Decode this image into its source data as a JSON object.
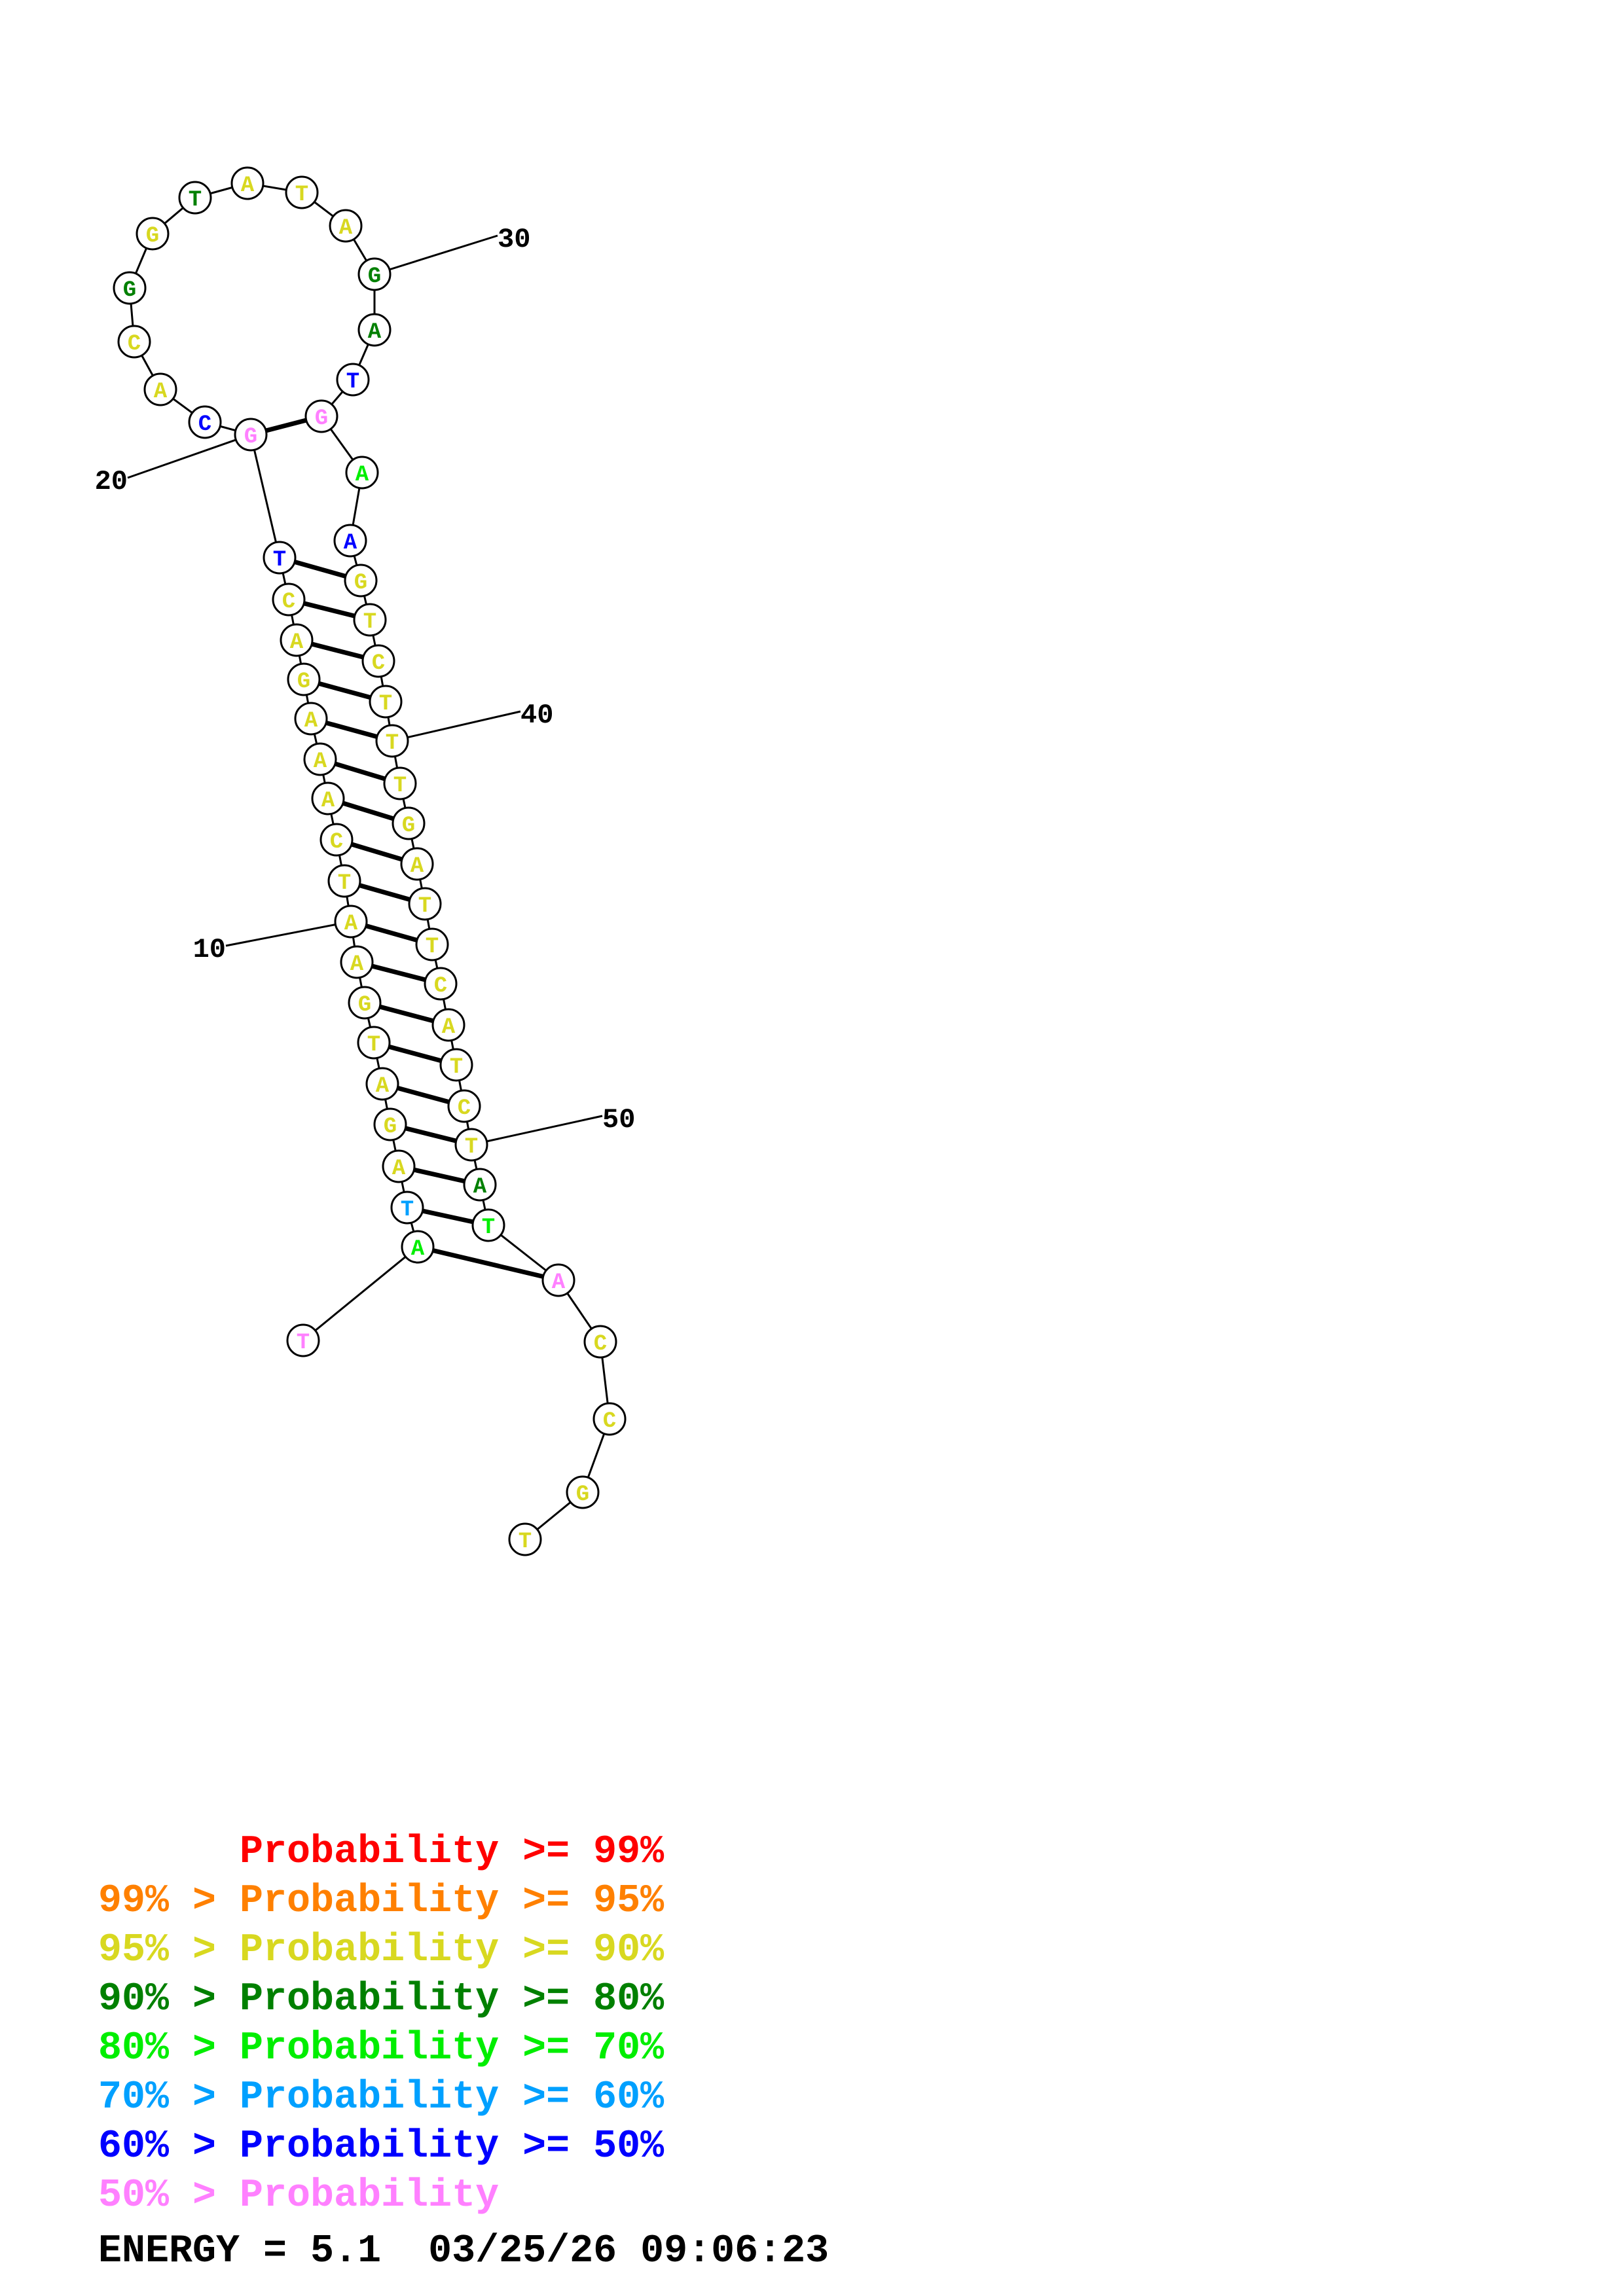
{
  "diagram": {
    "type": "rna_secondary_structure",
    "sequence": [
      "T",
      "A",
      "T",
      "A",
      "G",
      "A",
      "T",
      "G",
      "A",
      "A",
      "T",
      "C",
      "A",
      "A",
      "A",
      "G",
      "A",
      "C",
      "T",
      "G",
      "C",
      "A",
      "C",
      "G",
      "G",
      "T",
      "A",
      "T",
      "A",
      "G",
      "A",
      "T",
      "G",
      "A",
      "A",
      "G",
      "T",
      "C",
      "T",
      "T",
      "T",
      "G",
      "A",
      "T",
      "T",
      "C",
      "A",
      "T",
      "C",
      "T",
      "A",
      "T",
      "A",
      "C",
      "C",
      "G",
      "T"
    ],
    "position_labels": [
      {
        "label": "10",
        "index": 10
      },
      {
        "label": "20",
        "index": 20
      },
      {
        "label": "30",
        "index": 30
      },
      {
        "label": "40",
        "index": 40
      },
      {
        "label": "50",
        "index": 50
      }
    ],
    "pairs": [
      [
        2,
        53
      ],
      [
        3,
        52
      ],
      [
        4,
        51
      ],
      [
        5,
        50
      ],
      [
        6,
        49
      ],
      [
        7,
        48
      ],
      [
        8,
        47
      ],
      [
        9,
        46
      ],
      [
        10,
        45
      ],
      [
        11,
        44
      ],
      [
        12,
        43
      ],
      [
        13,
        42
      ],
      [
        14,
        41
      ],
      [
        15,
        40
      ],
      [
        16,
        39
      ],
      [
        17,
        38
      ],
      [
        18,
        37
      ],
      [
        19,
        36
      ],
      [
        20,
        33
      ]
    ],
    "base_probability_class": [
      7,
      4,
      5,
      2,
      2,
      2,
      2,
      2,
      2,
      2,
      2,
      2,
      2,
      2,
      2,
      2,
      2,
      2,
      6,
      7,
      6,
      2,
      2,
      3,
      2,
      3,
      2,
      2,
      2,
      3,
      3,
      6,
      7,
      4,
      6,
      2,
      2,
      2,
      2,
      2,
      2,
      2,
      2,
      2,
      2,
      2,
      2,
      2,
      2,
      2,
      3,
      4,
      7,
      2,
      2,
      2,
      2
    ]
  },
  "legend": {
    "colors": [
      "#ff0000",
      "#ff8000",
      "#d8d820",
      "#008000",
      "#00ee00",
      "#00a0ff",
      "#0000ff",
      "#ff80ff"
    ],
    "lines": [
      "      Probability >= 99%",
      "99% > Probability >= 95%",
      "95% > Probability >= 90%",
      "90% > Probability >= 80%",
      "80% > Probability >= 70%",
      "70% > Probability >= 60%",
      "60% > Probability >= 50%",
      "50% > Probability"
    ]
  },
  "footer": {
    "energy_text": "ENERGY = 5.1  03/25/26 09:06:23"
  }
}
